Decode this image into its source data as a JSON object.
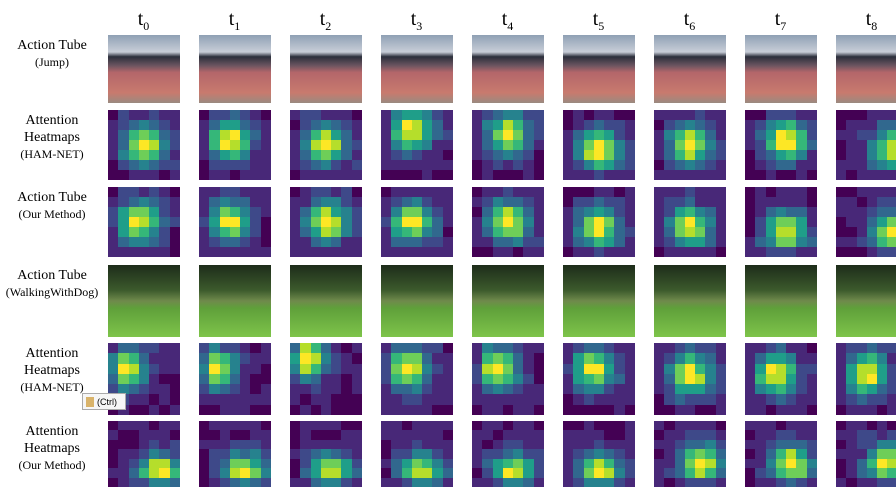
{
  "columns": [
    {
      "base": "t",
      "sub": "0"
    },
    {
      "base": "t",
      "sub": "1"
    },
    {
      "base": "t",
      "sub": "2"
    },
    {
      "base": "t",
      "sub": "3"
    },
    {
      "base": "t",
      "sub": "4"
    },
    {
      "base": "t",
      "sub": "5"
    },
    {
      "base": "t",
      "sub": "6"
    },
    {
      "base": "t",
      "sub": "7"
    },
    {
      "base": "t",
      "sub": "8"
    }
  ],
  "rows": [
    {
      "label": [
        "Action Tube",
        "(Jump)"
      ]
    },
    {
      "label": [
        "Attention",
        "Heatmaps",
        "(HAM-NET)"
      ]
    },
    {
      "label": [
        "Action Tube",
        "(Our Method)"
      ]
    },
    {
      "label": [
        "Action Tube",
        "(WalkingWithDog)"
      ]
    },
    {
      "label": [
        "Attention",
        "Heatmaps",
        "(HAM-NET)"
      ]
    },
    {
      "label": [
        "Attention",
        "Heatmaps",
        "(Our Method)"
      ]
    }
  ],
  "paste_button": "(Ctrl)"
}
